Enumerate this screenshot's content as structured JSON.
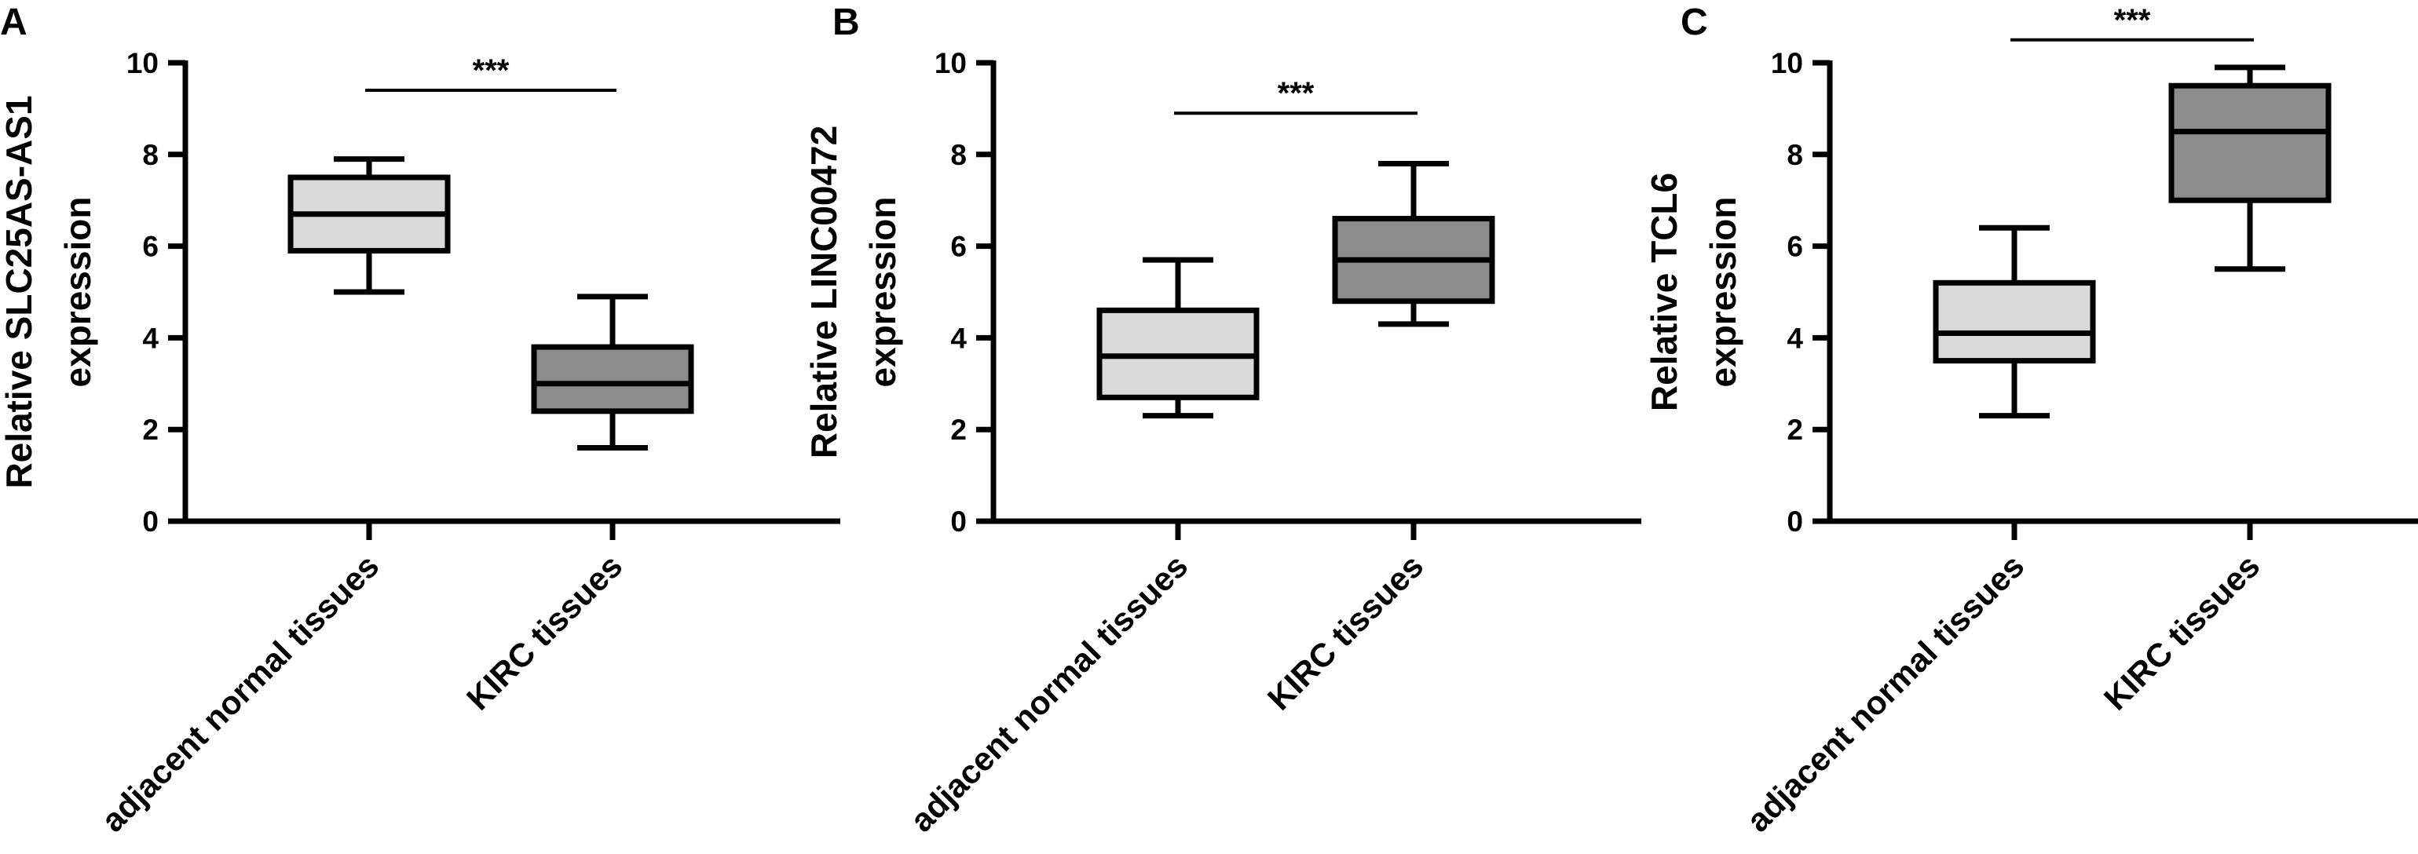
{
  "chart_data": [
    {
      "type": "box",
      "panel": "A",
      "ylabel_lines": [
        "Relative SLC25AS-AS1",
        "expression"
      ],
      "ylim": [
        0,
        10
      ],
      "yticks": [
        0,
        2,
        4,
        6,
        8,
        10
      ],
      "categories": [
        "adjacent normal tissues",
        "KIRC tissues"
      ],
      "boxes": [
        {
          "min": 5.0,
          "q1": 5.9,
          "median": 6.7,
          "q3": 7.5,
          "max": 7.9,
          "color": "#d9d9d9"
        },
        {
          "min": 1.6,
          "q1": 2.4,
          "median": 3.0,
          "q3": 3.8,
          "max": 4.9,
          "color": "#8c8c8c"
        }
      ],
      "significance": {
        "label": "***",
        "y": 9.4
      }
    },
    {
      "type": "box",
      "panel": "B",
      "ylabel_lines": [
        "Relative LINC00472",
        "expression"
      ],
      "ylim": [
        0,
        10
      ],
      "yticks": [
        0,
        2,
        4,
        6,
        8,
        10
      ],
      "categories": [
        "adjacent normal tissues",
        "KIRC tissues"
      ],
      "boxes": [
        {
          "min": 2.3,
          "q1": 2.7,
          "median": 3.6,
          "q3": 4.6,
          "max": 5.7,
          "color": "#d9d9d9"
        },
        {
          "min": 4.3,
          "q1": 4.8,
          "median": 5.7,
          "q3": 6.6,
          "max": 7.8,
          "color": "#8c8c8c"
        }
      ],
      "significance": {
        "label": "***",
        "y": 8.9
      }
    },
    {
      "type": "box",
      "panel": "C",
      "ylabel_lines": [
        "Relative TCL6",
        "expression"
      ],
      "ylim": [
        0,
        10
      ],
      "yticks": [
        0,
        2,
        4,
        6,
        8,
        10
      ],
      "categories": [
        "adjacent normal tissues",
        "KIRC tissues"
      ],
      "boxes": [
        {
          "min": 2.3,
          "q1": 3.5,
          "median": 4.1,
          "q3": 5.2,
          "max": 6.4,
          "color": "#d9d9d9"
        },
        {
          "min": 5.5,
          "q1": 7.0,
          "median": 8.5,
          "q3": 9.5,
          "max": 9.9,
          "color": "#8c8c8c"
        }
      ],
      "significance": {
        "label": "***",
        "y": 10.5
      }
    }
  ]
}
